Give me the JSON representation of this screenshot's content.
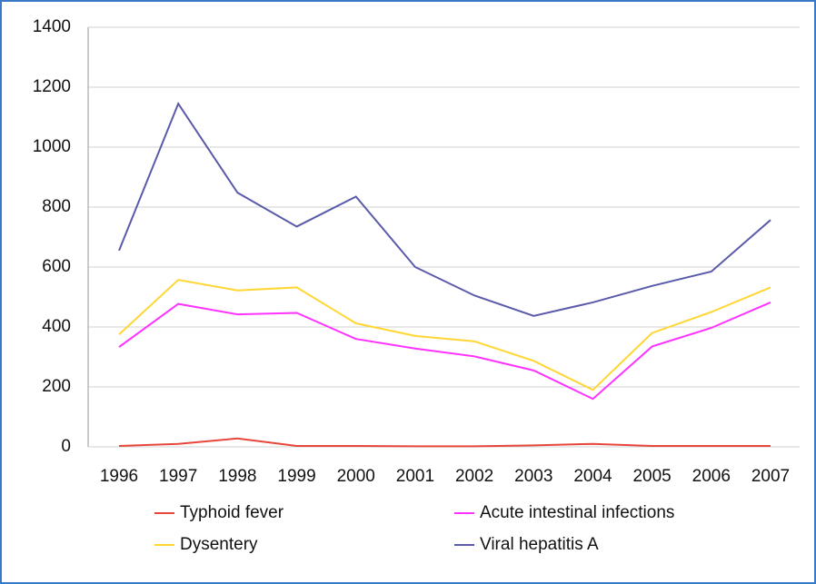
{
  "chart_data": {
    "type": "line",
    "categories": [
      "1996",
      "1997",
      "1998",
      "1999",
      "2000",
      "2001",
      "2002",
      "2003",
      "2004",
      "2005",
      "2006",
      "2007"
    ],
    "series": [
      {
        "name": "Typhoid fever",
        "color": "#e8463a",
        "values": [
          3,
          10,
          28,
          3,
          3,
          2,
          2,
          5,
          10,
          3,
          3,
          3
        ]
      },
      {
        "name": "Acute intestinal infections",
        "color": "#ff33ff",
        "values": [
          333,
          477,
          442,
          447,
          360,
          328,
          302,
          255,
          160,
          335,
          397,
          482
        ]
      },
      {
        "name": "Dysentery",
        "color": "#ffd633",
        "values": [
          375,
          557,
          522,
          532,
          412,
          370,
          352,
          287,
          190,
          380,
          450,
          532
        ]
      },
      {
        "name": "Viral hepatitis A",
        "color": "#5a5aaa",
        "values": [
          655,
          1145,
          848,
          735,
          835,
          600,
          505,
          437,
          482,
          537,
          585,
          757
        ]
      }
    ],
    "ylim": [
      0,
      1400
    ],
    "yticks": [
      0,
      200,
      400,
      600,
      800,
      1000,
      1200,
      1400
    ],
    "grid": true
  }
}
